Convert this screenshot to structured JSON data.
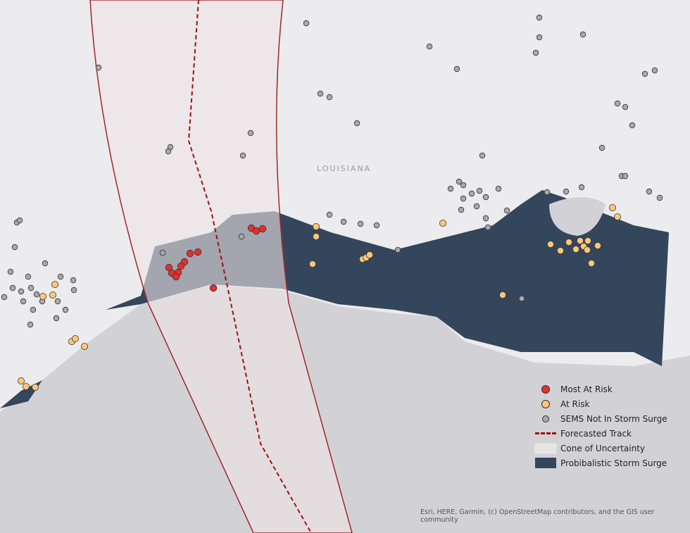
{
  "map": {
    "state_label": "LOUISIANA",
    "attribution": "Esri, HERE, Garmin, (c) OpenStreetMap contributors, and the GIS user community"
  },
  "legend": {
    "items": [
      {
        "label": "Most At Risk",
        "symbol": "circle",
        "color": "#e03030"
      },
      {
        "label": "At Risk",
        "symbol": "circle",
        "color": "#fcc77a"
      },
      {
        "label": "SEMS Not In Storm Surge",
        "symbol": "circle",
        "color": "#a9a9a9"
      },
      {
        "label": "Forecasted Track",
        "symbol": "dashed-line",
        "color": "#a01010"
      },
      {
        "label": "Cone of Uncertainty",
        "symbol": "box",
        "color": "#e8e4e6"
      },
      {
        "label": "Probibalistic Storm Surge",
        "symbol": "box",
        "color": "#34465c"
      }
    ]
  },
  "colors": {
    "land": "#ececee",
    "water": "#d2d2d6",
    "surge": "#34465c"
  }
}
